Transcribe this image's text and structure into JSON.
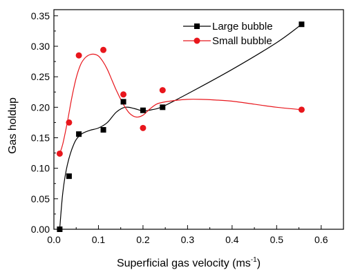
{
  "chart_data": {
    "type": "scatter",
    "xlabel": "Superficial gas velocity (ms",
    "xlabel_sup": "-1",
    "xlabel_end": ")",
    "ylabel": "Gas holdup",
    "xlim": [
      0.0,
      0.65
    ],
    "ylim": [
      0.0,
      0.36
    ],
    "x_ticks": [
      "0.0",
      "0.1",
      "0.2",
      "0.3",
      "0.4",
      "0.5",
      "0.6"
    ],
    "y_ticks": [
      "0.00",
      "0.05",
      "0.10",
      "0.15",
      "0.20",
      "0.25",
      "0.30",
      "0.35"
    ],
    "legend_position": "top-center",
    "grid": false,
    "series": [
      {
        "name": "Large bubble",
        "color": "#000000",
        "marker": "square",
        "x": [
          0.013,
          0.034,
          0.056,
          0.111,
          0.156,
          0.2,
          0.244,
          0.556
        ],
        "y": [
          0.0,
          0.087,
          0.156,
          0.163,
          0.209,
          0.195,
          0.2,
          0.336
        ],
        "fit_x": [
          0.013,
          0.02,
          0.03,
          0.045,
          0.06,
          0.08,
          0.1,
          0.12,
          0.14,
          0.16,
          0.18,
          0.2,
          0.22,
          0.244,
          0.3,
          0.4,
          0.5,
          0.556
        ],
        "fit_y": [
          0.0,
          0.06,
          0.105,
          0.14,
          0.155,
          0.162,
          0.166,
          0.175,
          0.192,
          0.2,
          0.198,
          0.194,
          0.196,
          0.201,
          0.222,
          0.262,
          0.306,
          0.336
        ]
      },
      {
        "name": "Small bubble",
        "color": "#e8161c",
        "marker": "circle",
        "x": [
          0.013,
          0.034,
          0.056,
          0.111,
          0.156,
          0.2,
          0.244,
          0.556
        ],
        "y": [
          0.124,
          0.175,
          0.285,
          0.294,
          0.221,
          0.166,
          0.228,
          0.196
        ],
        "fit_x": [
          0.013,
          0.02,
          0.03,
          0.04,
          0.05,
          0.06,
          0.07,
          0.08,
          0.09,
          0.1,
          0.11,
          0.12,
          0.13,
          0.14,
          0.155,
          0.17,
          0.185,
          0.2,
          0.215,
          0.23,
          0.244,
          0.27,
          0.3,
          0.33,
          0.36,
          0.4,
          0.45,
          0.5,
          0.556
        ],
        "fit_y": [
          0.124,
          0.14,
          0.175,
          0.215,
          0.248,
          0.27,
          0.281,
          0.286,
          0.287,
          0.284,
          0.275,
          0.262,
          0.245,
          0.228,
          0.206,
          0.19,
          0.184,
          0.187,
          0.197,
          0.205,
          0.208,
          0.211,
          0.213,
          0.213,
          0.212,
          0.21,
          0.205,
          0.2,
          0.196
        ]
      }
    ]
  }
}
